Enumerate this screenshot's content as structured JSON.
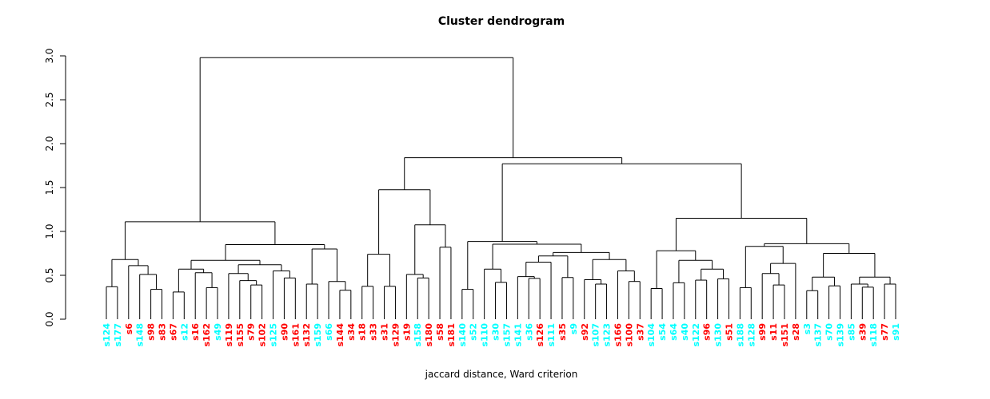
{
  "figure": {
    "title": "Cluster dendrogram",
    "caption": "jaccard distance, Ward criterion"
  },
  "chart_data": {
    "type": "dendrogram",
    "title": "Cluster dendrogram",
    "xlabel": "jaccard distance, Ward criterion",
    "ylabel": "",
    "y_axis": {
      "min": 0.0,
      "max": 3.0,
      "ticks": [
        "0.0",
        "0.5",
        "1.0",
        "1.5",
        "2.0",
        "2.5",
        "3.0"
      ]
    },
    "grid": false,
    "legend": false,
    "colors": {
      "cyan": "#00FFFF",
      "red": "#FF0000",
      "line": "#000000",
      "text": "#000000"
    },
    "leaves": [
      {
        "name": "s124",
        "color": "cyan"
      },
      {
        "name": "s177",
        "color": "cyan"
      },
      {
        "name": "s6",
        "color": "red"
      },
      {
        "name": "s148",
        "color": "cyan"
      },
      {
        "name": "s98",
        "color": "red"
      },
      {
        "name": "s83",
        "color": "red"
      },
      {
        "name": "s67",
        "color": "red"
      },
      {
        "name": "s12",
        "color": "cyan"
      },
      {
        "name": "s16",
        "color": "red"
      },
      {
        "name": "s162",
        "color": "red"
      },
      {
        "name": "s49",
        "color": "cyan"
      },
      {
        "name": "s119",
        "color": "red"
      },
      {
        "name": "s155",
        "color": "red"
      },
      {
        "name": "s79",
        "color": "red"
      },
      {
        "name": "s102",
        "color": "red"
      },
      {
        "name": "s125",
        "color": "cyan"
      },
      {
        "name": "s90",
        "color": "red"
      },
      {
        "name": "s161",
        "color": "red"
      },
      {
        "name": "s132",
        "color": "red"
      },
      {
        "name": "s159",
        "color": "cyan"
      },
      {
        "name": "s66",
        "color": "cyan"
      },
      {
        "name": "s144",
        "color": "red"
      },
      {
        "name": "s34",
        "color": "red"
      },
      {
        "name": "s18",
        "color": "red"
      },
      {
        "name": "s33",
        "color": "red"
      },
      {
        "name": "s31",
        "color": "red"
      },
      {
        "name": "s129",
        "color": "red"
      },
      {
        "name": "s19",
        "color": "red"
      },
      {
        "name": "s158",
        "color": "cyan"
      },
      {
        "name": "s180",
        "color": "red"
      },
      {
        "name": "s58",
        "color": "red"
      },
      {
        "name": "s181",
        "color": "red"
      },
      {
        "name": "s140",
        "color": "cyan"
      },
      {
        "name": "s52",
        "color": "cyan"
      },
      {
        "name": "s110",
        "color": "cyan"
      },
      {
        "name": "s30",
        "color": "cyan"
      },
      {
        "name": "s157",
        "color": "cyan"
      },
      {
        "name": "s141",
        "color": "cyan"
      },
      {
        "name": "s36",
        "color": "cyan"
      },
      {
        "name": "s126",
        "color": "red"
      },
      {
        "name": "s111",
        "color": "cyan"
      },
      {
        "name": "s35",
        "color": "red"
      },
      {
        "name": "s9",
        "color": "cyan"
      },
      {
        "name": "s92",
        "color": "red"
      },
      {
        "name": "s107",
        "color": "cyan"
      },
      {
        "name": "s123",
        "color": "cyan"
      },
      {
        "name": "s166",
        "color": "red"
      },
      {
        "name": "s100",
        "color": "red"
      },
      {
        "name": "s37",
        "color": "red"
      },
      {
        "name": "s104",
        "color": "cyan"
      },
      {
        "name": "s54",
        "color": "cyan"
      },
      {
        "name": "s64",
        "color": "cyan"
      },
      {
        "name": "s40",
        "color": "cyan"
      },
      {
        "name": "s122",
        "color": "cyan"
      },
      {
        "name": "s96",
        "color": "red"
      },
      {
        "name": "s130",
        "color": "cyan"
      },
      {
        "name": "s51",
        "color": "red"
      },
      {
        "name": "s188",
        "color": "cyan"
      },
      {
        "name": "s128",
        "color": "cyan"
      },
      {
        "name": "s99",
        "color": "red"
      },
      {
        "name": "s11",
        "color": "red"
      },
      {
        "name": "s151",
        "color": "red"
      },
      {
        "name": "s28",
        "color": "red"
      },
      {
        "name": "s3",
        "color": "cyan"
      },
      {
        "name": "s137",
        "color": "cyan"
      },
      {
        "name": "s70",
        "color": "cyan"
      },
      {
        "name": "s139",
        "color": "cyan"
      },
      {
        "name": "s85",
        "color": "cyan"
      },
      {
        "name": "s39",
        "color": "red"
      },
      {
        "name": "s118",
        "color": "cyan"
      },
      {
        "name": "s77",
        "color": "red"
      },
      {
        "name": "s91",
        "color": "cyan"
      }
    ],
    "tree": {
      "h": 2.98,
      "c": [
        {
          "h": 1.11,
          "c": [
            {
              "h": 0.68,
              "c": [
                {
                  "h": 0.37,
                  "c": [
                    "s124",
                    "s177"
                  ]
                },
                {
                  "h": 0.61,
                  "c": [
                    "s6",
                    {
                      "h": 0.51,
                      "c": [
                        "s148",
                        {
                          "h": 0.34,
                          "c": [
                            "s98",
                            "s83"
                          ]
                        }
                      ]
                    }
                  ]
                }
              ]
            },
            {
              "h": 0.85,
              "c": [
                {
                  "h": 0.67,
                  "c": [
                    {
                      "h": 0.57,
                      "c": [
                        {
                          "h": 0.31,
                          "c": [
                            "s67",
                            "s12"
                          ]
                        },
                        {
                          "h": 0.53,
                          "c": [
                            "s16",
                            {
                              "h": 0.36,
                              "c": [
                                "s162",
                                "s49"
                              ]
                            }
                          ]
                        }
                      ]
                    },
                    {
                      "h": 0.62,
                      "c": [
                        {
                          "h": 0.52,
                          "c": [
                            "s119",
                            {
                              "h": 0.44,
                              "c": [
                                "s155",
                                {
                                  "h": 0.39,
                                  "c": [
                                    "s79",
                                    "s102"
                                  ]
                                }
                              ]
                            }
                          ]
                        },
                        {
                          "h": 0.55,
                          "c": [
                            "s125",
                            {
                              "h": 0.47,
                              "c": [
                                "s90",
                                "s161"
                              ]
                            }
                          ]
                        }
                      ]
                    }
                  ]
                },
                {
                  "h": 0.8,
                  "c": [
                    {
                      "h": 0.4,
                      "c": [
                        "s132",
                        "s159"
                      ]
                    },
                    {
                      "h": 0.43,
                      "c": [
                        "s66",
                        {
                          "h": 0.33,
                          "c": [
                            "s144",
                            "s34"
                          ]
                        }
                      ]
                    }
                  ]
                }
              ]
            }
          ]
        },
        {
          "h": 1.84,
          "c": [
            {
              "h": 1.475,
              "c": [
                {
                  "h": 0.74,
                  "c": [
                    {
                      "h": 0.375,
                      "c": [
                        "s18",
                        "s33"
                      ]
                    },
                    {
                      "h": 0.375,
                      "c": [
                        "s31",
                        "s129"
                      ]
                    }
                  ]
                },
                {
                  "h": 1.075,
                  "c": [
                    {
                      "h": 0.51,
                      "c": [
                        "s19",
                        {
                          "h": 0.47,
                          "c": [
                            "s158",
                            "s180"
                          ]
                        }
                      ]
                    },
                    {
                      "h": 0.82,
                      "c": [
                        "s58",
                        "s181"
                      ]
                    }
                  ]
                }
              ]
            },
            {
              "h": 1.77,
              "c": [
                {
                  "h": 0.885,
                  "c": [
                    {
                      "h": 0.34,
                      "c": [
                        "s140",
                        "s52"
                      ]
                    },
                    {
                      "h": 0.855,
                      "c": [
                        {
                          "h": 0.57,
                          "c": [
                            "s110",
                            {
                              "h": 0.42,
                              "c": [
                                "s30",
                                "s157"
                              ]
                            }
                          ]
                        },
                        {
                          "h": 0.76,
                          "c": [
                            {
                              "h": 0.72,
                              "c": [
                                {
                                  "h": 0.65,
                                  "c": [
                                    {
                                      "h": 0.485,
                                      "c": [
                                        "s141",
                                        {
                                          "h": 0.465,
                                          "c": [
                                            "s36",
                                            "s126"
                                          ]
                                        }
                                      ]
                                    },
                                    "s111"
                                  ]
                                },
                                {
                                  "h": 0.475,
                                  "c": [
                                    "s35",
                                    "s9"
                                  ]
                                }
                              ]
                            },
                            {
                              "h": 0.68,
                              "c": [
                                {
                                  "h": 0.45,
                                  "c": [
                                    "s92",
                                    {
                                      "h": 0.4,
                                      "c": [
                                        "s107",
                                        "s123"
                                      ]
                                    }
                                  ]
                                },
                                {
                                  "h": 0.55,
                                  "c": [
                                    "s166",
                                    {
                                      "h": 0.43,
                                      "c": [
                                        "s100",
                                        "s37"
                                      ]
                                    }
                                  ]
                                }
                              ]
                            }
                          ]
                        }
                      ]
                    }
                  ]
                },
                {
                  "h": 1.15,
                  "c": [
                    {
                      "h": 0.78,
                      "c": [
                        {
                          "h": 0.35,
                          "c": [
                            "s104",
                            "s54"
                          ]
                        },
                        {
                          "h": 0.67,
                          "c": [
                            {
                              "h": 0.415,
                              "c": [
                                "s64",
                                "s40"
                              ]
                            },
                            {
                              "h": 0.57,
                              "c": [
                                {
                                  "h": 0.445,
                                  "c": [
                                    "s122",
                                    "s96"
                                  ]
                                },
                                {
                                  "h": 0.46,
                                  "c": [
                                    "s130",
                                    "s51"
                                  ]
                                }
                              ]
                            }
                          ]
                        }
                      ]
                    },
                    {
                      "h": 0.86,
                      "c": [
                        {
                          "h": 0.83,
                          "c": [
                            {
                              "h": 0.36,
                              "c": [
                                "s188",
                                "s128"
                              ]
                            },
                            {
                              "h": 0.635,
                              "c": [
                                {
                                  "h": 0.52,
                                  "c": [
                                    "s99",
                                    {
                                      "h": 0.39,
                                      "c": [
                                        "s11",
                                        "s151"
                                      ]
                                    }
                                  ]
                                },
                                "s28"
                              ]
                            }
                          ]
                        },
                        {
                          "h": 0.75,
                          "c": [
                            {
                              "h": 0.48,
                              "c": [
                                {
                                  "h": 0.325,
                                  "c": [
                                    "s3",
                                    "s137"
                                  ]
                                },
                                {
                                  "h": 0.38,
                                  "c": [
                                    "s70",
                                    "s139"
                                  ]
                                }
                              ]
                            },
                            {
                              "h": 0.48,
                              "c": [
                                {
                                  "h": 0.4,
                                  "c": [
                                    "s85",
                                    {
                                      "h": 0.365,
                                      "c": [
                                        "s39",
                                        "s118"
                                      ]
                                    }
                                  ]
                                },
                                {
                                  "h": 0.4,
                                  "c": [
                                    "s77",
                                    "s91"
                                  ]
                                }
                              ]
                            }
                          ]
                        }
                      ]
                    }
                  ]
                }
              ]
            }
          ]
        }
      ]
    }
  }
}
